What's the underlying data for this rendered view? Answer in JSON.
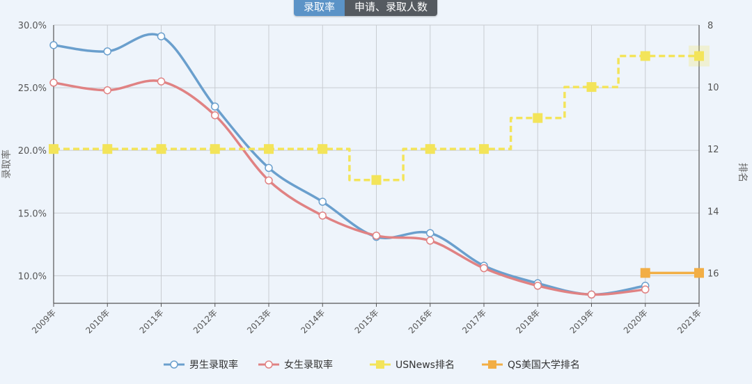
{
  "tabs": [
    {
      "label": "录取率",
      "active": true
    },
    {
      "label": "申请、录取人数",
      "active": false
    }
  ],
  "chart_data": {
    "type": "line",
    "categories": [
      "2009年",
      "2010年",
      "2011年",
      "2012年",
      "2013年",
      "2014年",
      "2015年",
      "2016年",
      "2017年",
      "2018年",
      "2019年",
      "2020年",
      "2021年"
    ],
    "y_left": {
      "label": "录取率",
      "ticks": [
        "30.0%",
        "25.0%",
        "20.0%",
        "15.0%",
        "10.0%"
      ],
      "range": [
        7.8,
        30.0
      ],
      "unit": "%"
    },
    "y_right": {
      "label": "排名",
      "ticks": [
        "8",
        "10",
        "12",
        "14",
        "16"
      ],
      "range": [
        8,
        16.98
      ],
      "inverted": true
    },
    "grid": true,
    "legend_position": "bottom",
    "series": [
      {
        "name": "男生录取率",
        "color": "#6a9fcd",
        "axis": "left",
        "smooth": true,
        "marker": "circle",
        "values": [
          28.4,
          27.9,
          29.1,
          23.5,
          18.6,
          15.9,
          13.1,
          13.4,
          10.8,
          9.4,
          8.5,
          9.2,
          null
        ]
      },
      {
        "name": "女生录取率",
        "color": "#e08283",
        "axis": "left",
        "smooth": true,
        "marker": "circle",
        "values": [
          25.4,
          24.8,
          25.5,
          22.8,
          17.6,
          14.8,
          13.2,
          12.8,
          10.6,
          9.2,
          8.5,
          8.9,
          null
        ]
      },
      {
        "name": "USNews排名",
        "color": "#f3e45a",
        "axis": "right",
        "step": true,
        "dashed": true,
        "marker": "square",
        "values": [
          12,
          12,
          12,
          12,
          12,
          12,
          13,
          12,
          12,
          11,
          10,
          9,
          9
        ]
      },
      {
        "name": "QS美国大学排名",
        "color": "#f2ae45",
        "axis": "right",
        "marker": "square",
        "values": [
          null,
          null,
          null,
          null,
          null,
          null,
          null,
          null,
          null,
          null,
          null,
          16,
          16
        ]
      }
    ]
  }
}
